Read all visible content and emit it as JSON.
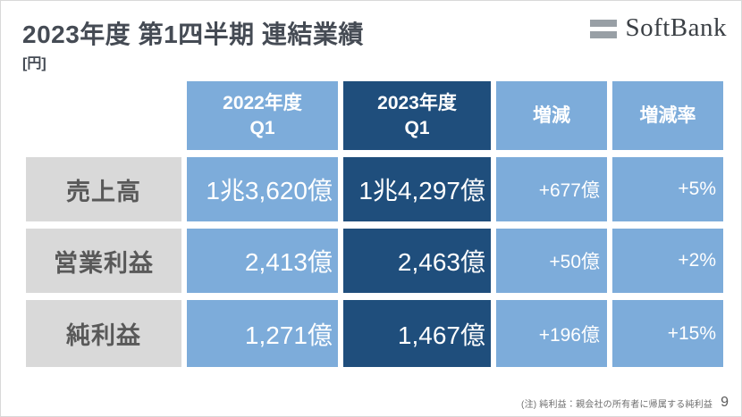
{
  "slide": {
    "title": "2023年度 第1四半期 連結業績",
    "unit_label": "[円]",
    "footnote": "(注) 純利益：親会社の所有者に帰属する純利益",
    "page_number": "9"
  },
  "logo": {
    "text": "SoftBank",
    "bars_icon": "softbank-equals-bars"
  },
  "colors": {
    "light_blue": "#7dacda",
    "dark_blue": "#1f4e7c",
    "label_gray": "#d9d9d9",
    "label_text": "#595959",
    "title_text": "#454b54"
  },
  "table": {
    "columns": [
      {
        "line1": "2022年度",
        "line2": "Q1",
        "style": "light"
      },
      {
        "line1": "2023年度",
        "line2": "Q1",
        "style": "dark"
      },
      {
        "line1": "増減",
        "style": "light"
      },
      {
        "line1": "増減率",
        "style": "light"
      }
    ],
    "rows": [
      {
        "label": "売上高",
        "fy2022": "1兆3,620億",
        "fy2023": "1兆4,297億",
        "change": "+677億",
        "change_rate": "+5%"
      },
      {
        "label": "営業利益",
        "fy2022": "2,413億",
        "fy2023": "2,463億",
        "change": "+50億",
        "change_rate": "+2%"
      },
      {
        "label": "純利益",
        "fy2022": "1,271億",
        "fy2023": "1,467億",
        "change": "+196億",
        "change_rate": "+15%"
      }
    ]
  }
}
